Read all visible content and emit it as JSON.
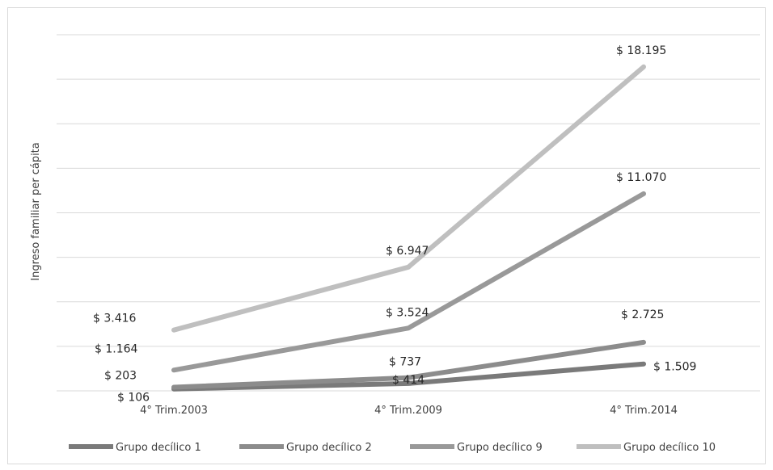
{
  "chart_data": {
    "type": "line",
    "title": "",
    "xlabel": "",
    "ylabel": "Ingreso familiar per cápita",
    "categories": [
      "4° Trim.2003",
      "4° Trim.2009",
      "4° Trim.2014"
    ],
    "ylim": [
      0,
      20000
    ],
    "grid": true,
    "legend_position": "bottom",
    "series": [
      {
        "name": "Grupo decílico 1",
        "values": [
          106,
          414,
          1509
        ],
        "labels": [
          "$ 106",
          "$ 414",
          "$ 1.509"
        ],
        "color": "#7a7a7a"
      },
      {
        "name": "Grupo decílico 2",
        "values": [
          203,
          737,
          2725
        ],
        "labels": [
          "$ 203",
          "$ 737",
          "$ 2.725"
        ],
        "color": "#8c8c8c"
      },
      {
        "name": "Grupo decílico 9",
        "values": [
          1164,
          3524,
          11070
        ],
        "labels": [
          "$ 1.164",
          "$ 3.524",
          "$ 11.070"
        ],
        "color": "#999999"
      },
      {
        "name": "Grupo decílico 10",
        "values": [
          3416,
          6947,
          18195
        ],
        "labels": [
          "$ 3.416",
          "$ 6.947",
          "$ 18.195"
        ],
        "color": "#bfbfbf"
      }
    ]
  }
}
